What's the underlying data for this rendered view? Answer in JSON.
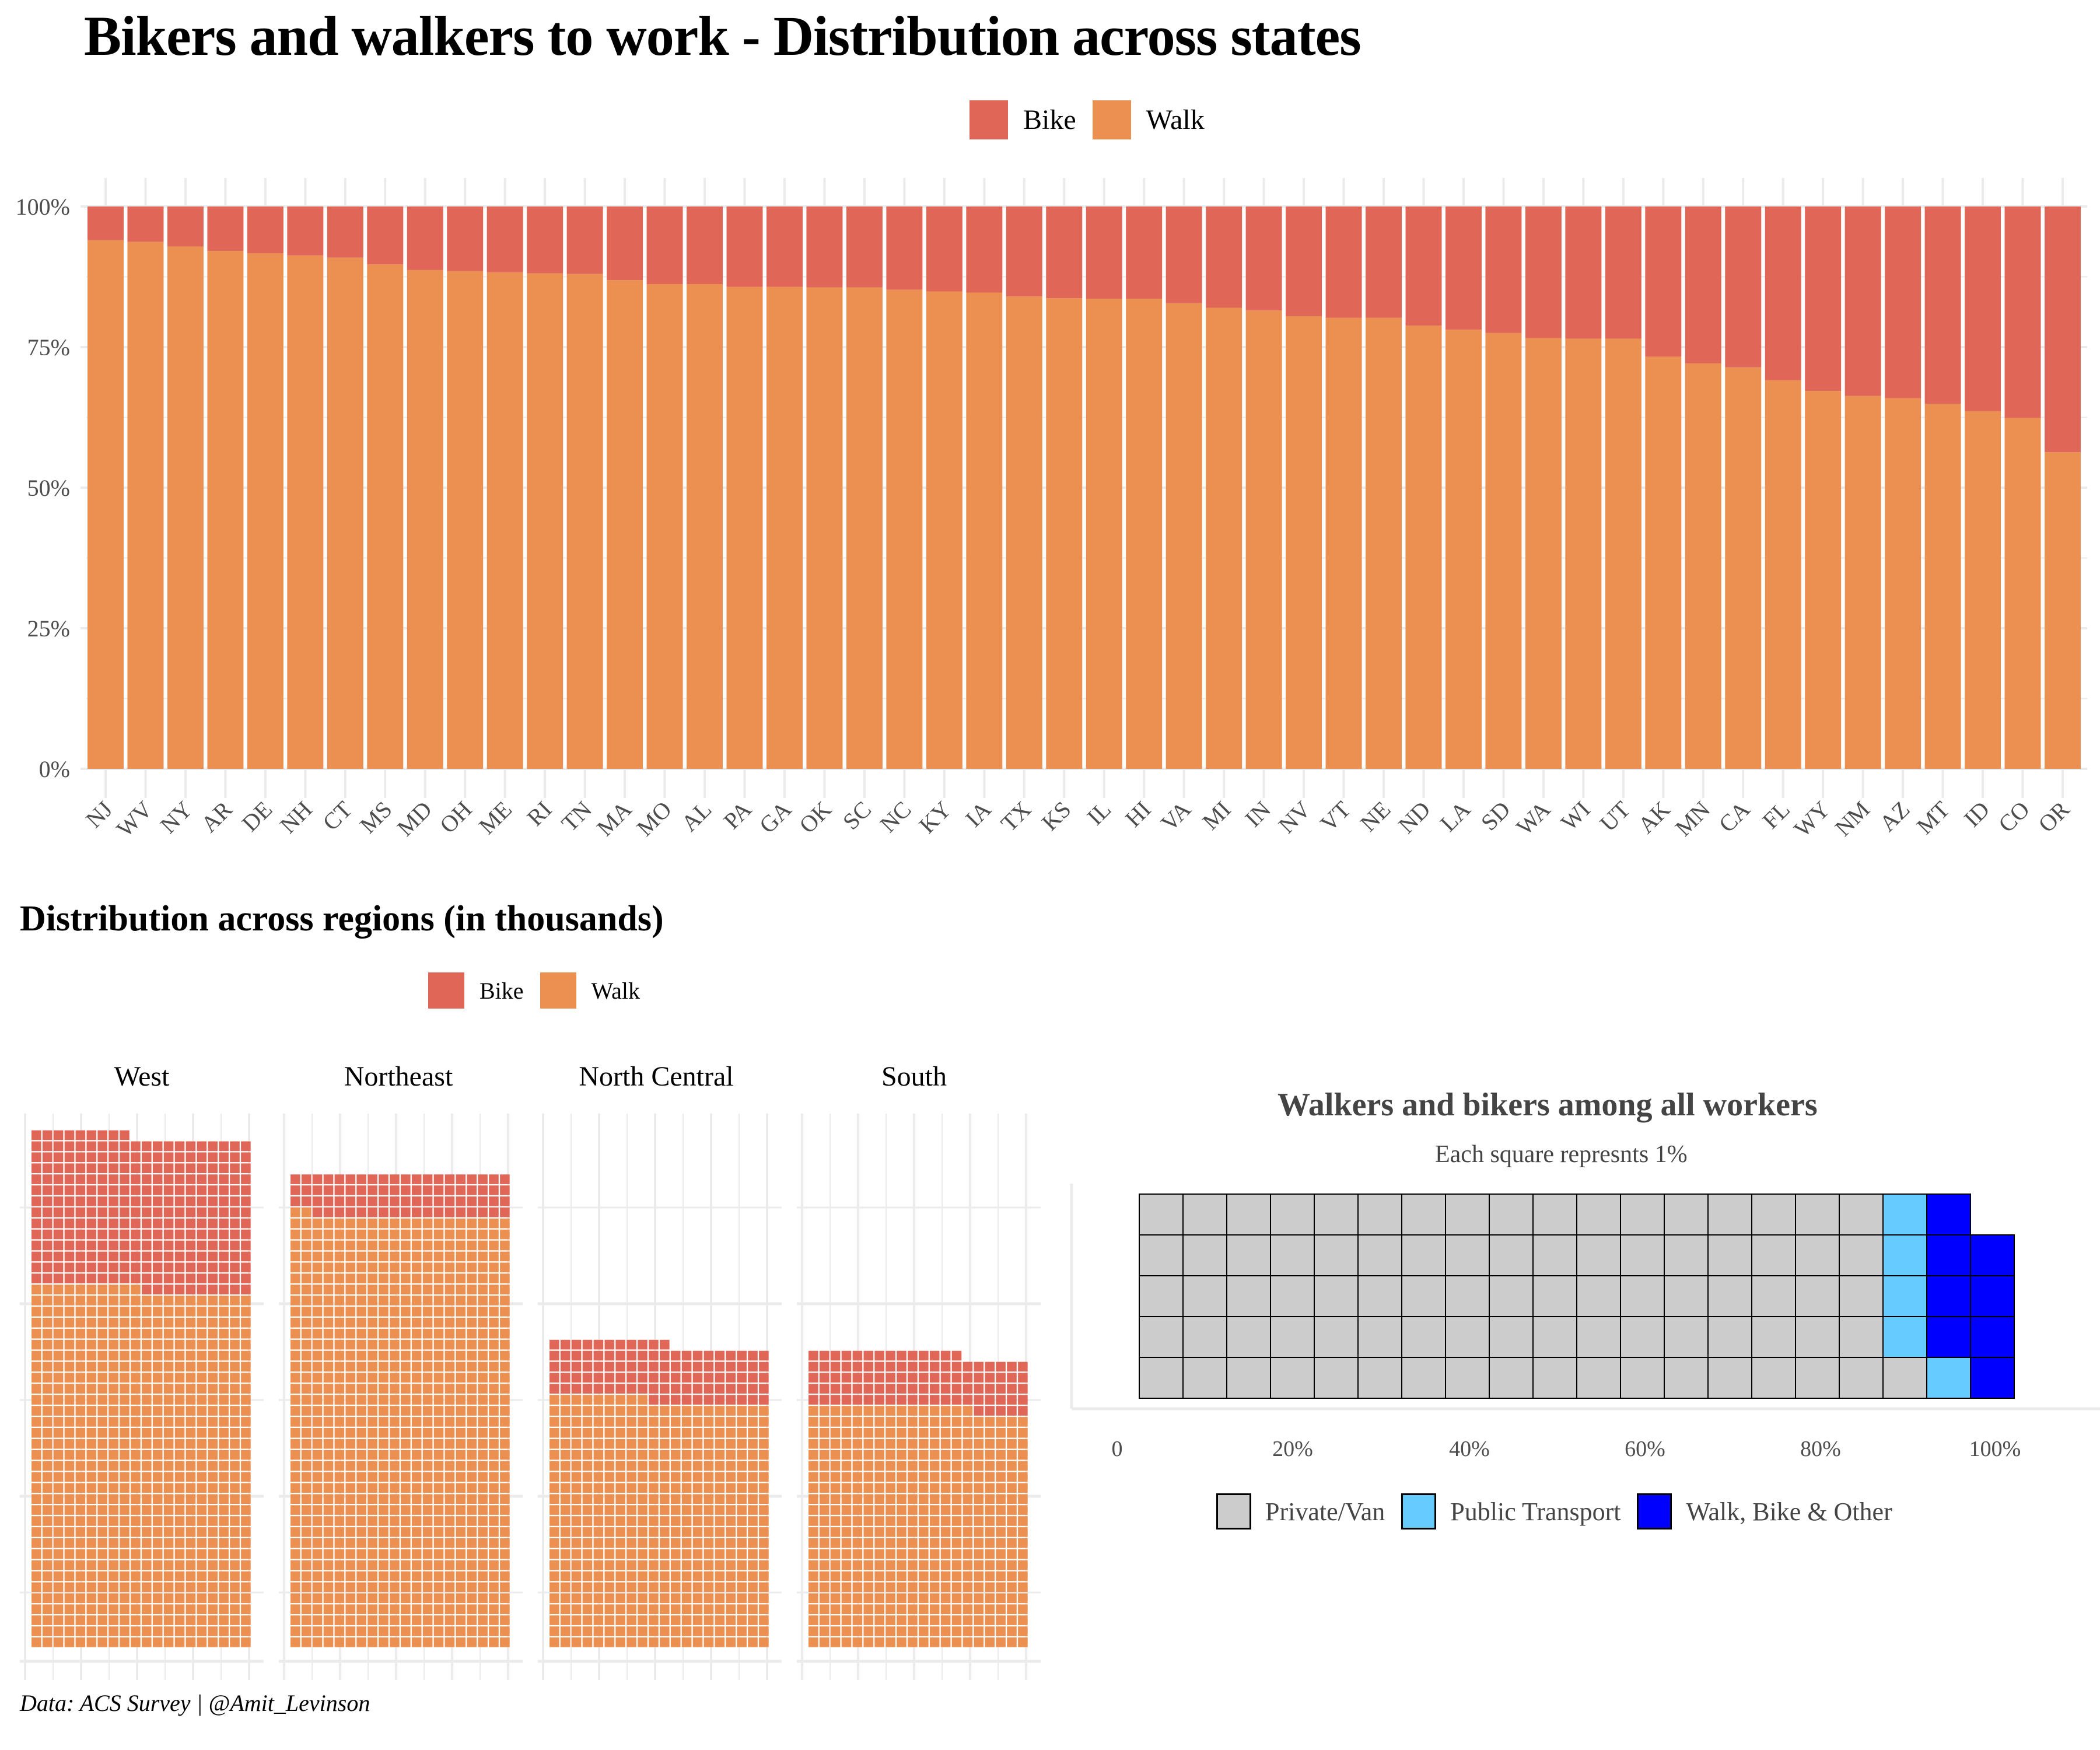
{
  "title": "Bikers and walkers to work - Distribution across states",
  "colors": {
    "bike": "#E06758",
    "walk": "#EB9050",
    "private": "#CCCCCC",
    "public": "#66CCFF",
    "walk_bike_other": "#0000FF",
    "grid": "#EBEBEB",
    "axis_text": "#4D4D4D"
  },
  "top_legend": [
    {
      "label": "Bike",
      "key": "bike"
    },
    {
      "label": "Walk",
      "key": "walk"
    }
  ],
  "middle_section": {
    "title": "Distribution across regions (in thousands)",
    "legend": [
      {
        "label": "Bike",
        "key": "bike"
      },
      {
        "label": "Walk",
        "key": "walk"
      }
    ]
  },
  "right_section": {
    "title": "Walkers and bikers among all workers",
    "subtitle": "Each square represnts 1%",
    "legend": [
      {
        "label": "Private/Van",
        "key": "private"
      },
      {
        "label": "Public Transport",
        "key": "public"
      },
      {
        "label": "Walk, Bike &  Other",
        "key": "walk_bike_other"
      }
    ]
  },
  "caption": "Data: ACS Survey | @Amit_Levinson",
  "chart_data": [
    {
      "type": "bar",
      "stacked": "percent",
      "title": "Bikers and walkers to work - Distribution across states",
      "xlabel": "",
      "ylabel": "",
      "ylim": [
        0,
        100
      ],
      "yticks": [
        "0%",
        "25%",
        "50%",
        "75%",
        "100%"
      ],
      "ytick_values": [
        0,
        25,
        50,
        75,
        100
      ],
      "legend_position": "top",
      "grid": true,
      "categories": [
        "NJ",
        "WV",
        "NY",
        "AR",
        "DE",
        "NH",
        "CT",
        "MS",
        "MD",
        "OH",
        "ME",
        "RI",
        "TN",
        "MA",
        "MO",
        "AL",
        "PA",
        "GA",
        "OK",
        "SC",
        "NC",
        "KY",
        "IA",
        "TX",
        "KS",
        "IL",
        "HI",
        "VA",
        "MI",
        "IN",
        "NV",
        "VT",
        "NE",
        "ND",
        "LA",
        "SD",
        "WA",
        "WI",
        "UT",
        "AK",
        "MN",
        "CA",
        "FL",
        "WY",
        "NM",
        "AZ",
        "MT",
        "ID",
        "CO",
        "OR"
      ],
      "series": [
        {
          "name": "Walk",
          "values": [
            94.0,
            93.7,
            92.9,
            92.1,
            91.7,
            91.3,
            90.9,
            89.7,
            88.7,
            88.5,
            88.3,
            88.1,
            88.0,
            86.9,
            86.2,
            86.2,
            85.7,
            85.7,
            85.6,
            85.6,
            85.2,
            84.9,
            84.7,
            84.0,
            83.7,
            83.6,
            83.6,
            82.8,
            82.0,
            81.5,
            80.5,
            80.2,
            80.2,
            78.8,
            78.1,
            77.5,
            76.6,
            76.5,
            76.5,
            73.3,
            72.1,
            71.4,
            69.1,
            67.2,
            66.3,
            65.9,
            64.9,
            63.6,
            62.4,
            56.3
          ]
        },
        {
          "name": "Bike",
          "values": [
            6.0,
            6.3,
            7.1,
            7.9,
            8.3,
            8.7,
            9.1,
            10.3,
            11.3,
            11.5,
            11.7,
            11.9,
            12.0,
            13.1,
            13.8,
            13.8,
            14.3,
            14.3,
            14.4,
            14.4,
            14.8,
            15.1,
            15.3,
            16.0,
            16.3,
            16.4,
            16.4,
            17.2,
            18.0,
            18.5,
            19.5,
            19.8,
            19.8,
            21.2,
            21.9,
            22.5,
            23.4,
            23.5,
            23.5,
            26.7,
            27.9,
            28.6,
            30.9,
            32.8,
            33.7,
            34.1,
            35.1,
            36.4,
            37.6,
            43.7
          ]
        }
      ]
    },
    {
      "type": "waffle",
      "title": "Distribution across regions (in thousands)",
      "columns": 20,
      "unit": "1 square = 1 thousand workers",
      "categories": [
        "West",
        "Northeast",
        "North Central",
        "South"
      ],
      "series": [
        {
          "name": "Walk",
          "values": [
            650,
            782,
            449,
            435
          ]
        },
        {
          "name": "Bike",
          "values": [
            279,
            78,
            102,
            99
          ]
        }
      ],
      "legend_position": "top"
    },
    {
      "type": "waffle",
      "title": "Walkers and bikers among all workers",
      "subtitle": "Each square represnts 1%",
      "rows": 5,
      "fill_order": "column-wise bottom-up",
      "categories": [
        "Private/Van",
        "Public Transport",
        "Walk, Bike &  Other"
      ],
      "values": [
        86,
        5,
        8
      ],
      "xticks": [
        "0",
        "20%",
        "40%",
        "60%",
        "80%",
        "100%"
      ],
      "xtick_values": [
        0,
        20,
        40,
        60,
        80,
        100
      ],
      "legend_position": "bottom"
    }
  ]
}
